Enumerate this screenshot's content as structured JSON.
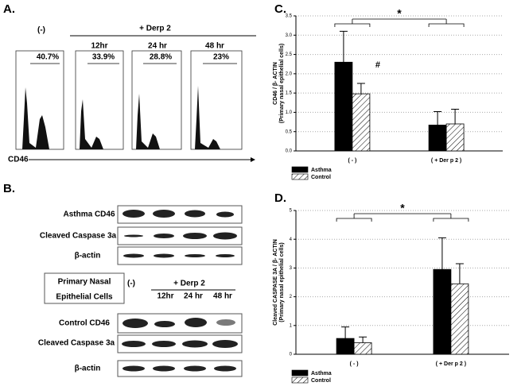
{
  "panel_a": {
    "label": "A.",
    "neg": "(-)",
    "treatment": "+ Derp 2",
    "times": [
      "12hr",
      "24 hr",
      "48 hr"
    ],
    "percents": [
      "40.7%",
      "33.9%",
      "28.8%",
      "23%"
    ],
    "marker": "CD46"
  },
  "panel_b": {
    "label": "B.",
    "asthma_rows": [
      "Asthma CD46",
      "Cleaved Caspase 3a",
      "β-actin"
    ],
    "cells_label": [
      "Primary Nasal",
      "Epithelial Cells"
    ],
    "neg": "(-)",
    "treatment": "+ Derp  2",
    "times": [
      "12hr",
      "24 hr",
      "48 hr"
    ],
    "control_rows": [
      "Control CD46",
      "Cleaved Caspase 3a",
      "β-actin"
    ]
  },
  "chart_data": [
    {
      "type": "bar",
      "panel": "C.",
      "y_label": "CD46 / β- ACTIN",
      "y_sublabel": "(Primary nasal epithelial cells)",
      "categories": [
        "( - )",
        "( + Der p 2 )"
      ],
      "series": [
        {
          "name": "Asthma",
          "color": "#000000",
          "hatch": false,
          "values": [
            2.3,
            0.67
          ],
          "errors": [
            0.8,
            0.35
          ]
        },
        {
          "name": "Control",
          "color": "#ffffff",
          "hatch": true,
          "values": [
            1.48,
            0.7
          ],
          "errors": [
            0.27,
            0.38
          ]
        }
      ],
      "ylim": [
        0,
        3.5
      ],
      "yticks": [
        {
          "value": 0,
          "label": "0.0"
        },
        0.5,
        {
          "value": 1,
          "label": "1.0"
        },
        1.5,
        {
          "value": 2,
          "label": "2.0"
        },
        2.5,
        {
          "value": 3,
          "label": "3.0"
        },
        3.5
      ],
      "grid": true,
      "annotations": [
        "*",
        "#"
      ]
    },
    {
      "type": "bar",
      "panel": "D.",
      "y_label": "Cleaved CASPASE 3A / β- ACTIN",
      "y_sublabel": "(Primary nasal epithelial cells)",
      "categories": [
        "( - )",
        "( + Der p 2 )"
      ],
      "series": [
        {
          "name": "Asthma",
          "color": "#000000",
          "hatch": false,
          "values": [
            0.55,
            2.95
          ],
          "errors": [
            0.4,
            1.1
          ]
        },
        {
          "name": "Control",
          "color": "#ffffff",
          "hatch": true,
          "values": [
            0.4,
            2.45
          ],
          "errors": [
            0.2,
            0.7
          ]
        }
      ],
      "ylim": [
        0,
        5
      ],
      "yticks": [
        0,
        1,
        2,
        3,
        4,
        5
      ],
      "grid": true,
      "annotations": [
        "*"
      ]
    }
  ]
}
